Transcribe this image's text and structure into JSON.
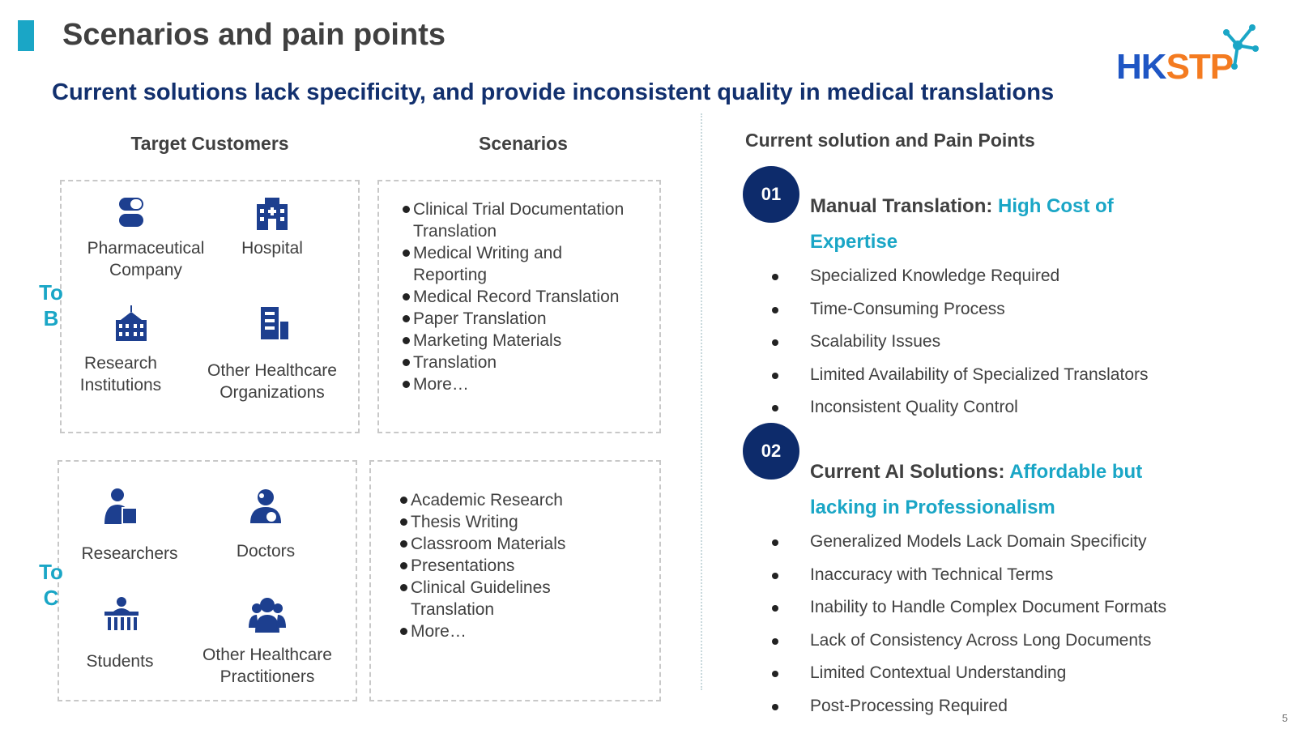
{
  "header": {
    "title": "Scenarios and pain points",
    "subtitle": "Current solutions lack specificity, and provide inconsistent quality in medical translations",
    "logo": {
      "blue": "HK",
      "orange": "STP"
    }
  },
  "columns": {
    "customers": "Target Customers",
    "scenarios": "Scenarios",
    "pain_points": "Current solution and Pain Points"
  },
  "groups": [
    {
      "label": [
        "To",
        "B"
      ],
      "customers": [
        "Pharmaceutical Company",
        "Hospital",
        "Research Institutions",
        "Other Healthcare Organizations"
      ],
      "scenarios": [
        "Clinical Trial Documentation Translation",
        "Medical Writing and Reporting",
        "Medical Record Translation",
        "Paper Translation",
        "Marketing Materials",
        "Translation",
        "More…"
      ]
    },
    {
      "label": [
        "To",
        "C"
      ],
      "customers": [
        "Researchers",
        "Doctors",
        "Students",
        "Other Healthcare Practitioners"
      ],
      "scenarios": [
        "Academic Research",
        "Thesis Writing",
        "Classroom Materials",
        "Presentations",
        "Clinical Guidelines Translation",
        "More…"
      ]
    }
  ],
  "pain_points": [
    {
      "number": "01",
      "title": "Manual Translation:",
      "highlight": "High Cost of Expertise",
      "items": [
        "Specialized Knowledge Required",
        "Time-Consuming Process",
        "Scalability Issues",
        "Limited Availability of Specialized Translators",
        "Inconsistent Quality Control"
      ]
    },
    {
      "number": "02",
      "title": "Current AI Solutions:",
      "highlight": "Affordable but lacking in Professionalism",
      "items": [
        "Generalized Models Lack Domain Specificity",
        "Inaccuracy with Technical Terms",
        "Inability to Handle Complex Document Formats",
        "Lack of Consistency Across Long Documents",
        "Limited Contextual Understanding",
        "Post-Processing Required"
      ]
    }
  ],
  "page_number": "5"
}
